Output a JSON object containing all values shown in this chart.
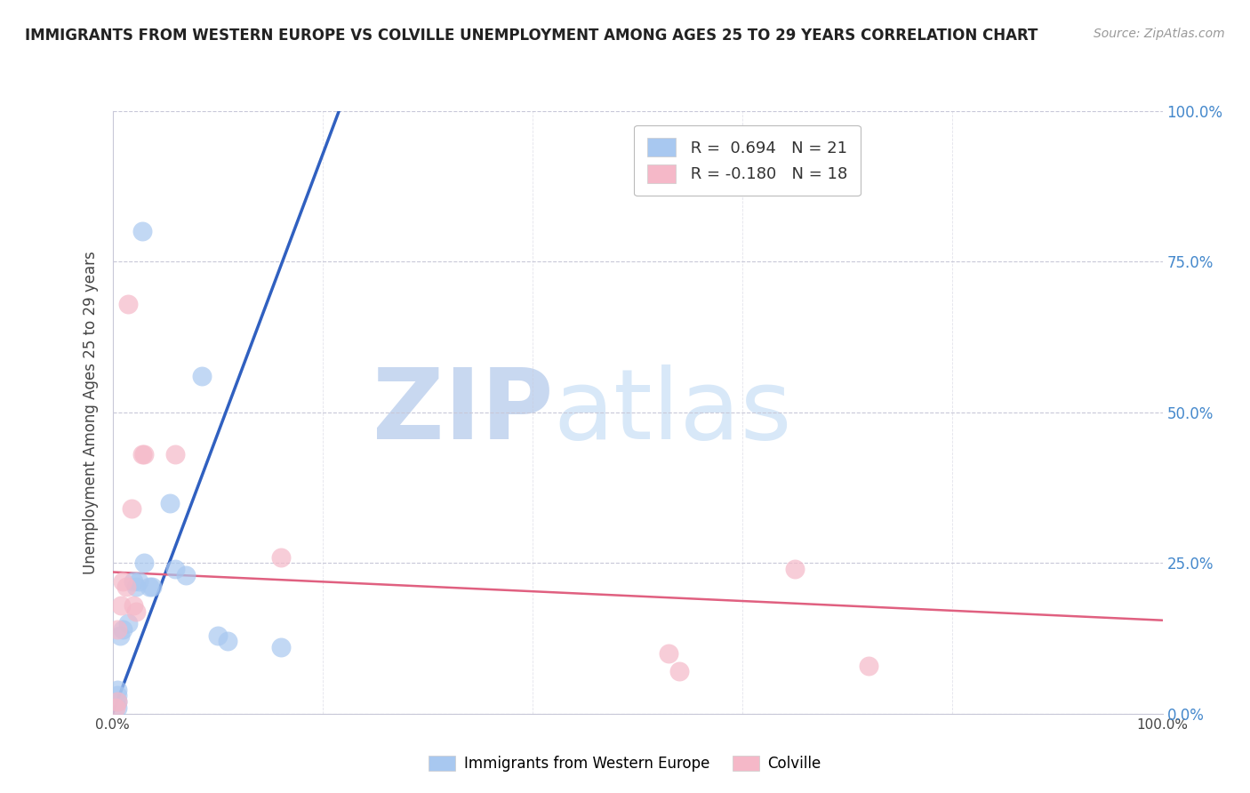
{
  "title": "IMMIGRANTS FROM WESTERN EUROPE VS COLVILLE UNEMPLOYMENT AMONG AGES 25 TO 29 YEARS CORRELATION CHART",
  "source": "Source: ZipAtlas.com",
  "ylabel": "Unemployment Among Ages 25 to 29 years",
  "xlim": [
    0,
    1.0
  ],
  "ylim": [
    0,
    1.0
  ],
  "ytick_vals": [
    0.0,
    0.25,
    0.5,
    0.75,
    1.0
  ],
  "xtick_vals": [
    0.0,
    1.0
  ],
  "xtick_labels": [
    "0.0%",
    "100.0%"
  ],
  "right_ytick_labels": [
    "100.0%",
    "75.0%",
    "50.0%",
    "25.0%",
    "0.0%"
  ],
  "watermark_zip": "ZIP",
  "watermark_atlas": "atlas",
  "blue_R": 0.694,
  "blue_N": 21,
  "pink_R": -0.18,
  "pink_N": 18,
  "blue_scatter_x": [
    0.005,
    0.005,
    0.005,
    0.005,
    0.007,
    0.01,
    0.015,
    0.02,
    0.022,
    0.025,
    0.028,
    0.03,
    0.035,
    0.038,
    0.055,
    0.06,
    0.07,
    0.085,
    0.1,
    0.11,
    0.16
  ],
  "blue_scatter_y": [
    0.01,
    0.02,
    0.03,
    0.04,
    0.13,
    0.14,
    0.15,
    0.22,
    0.21,
    0.22,
    0.8,
    0.25,
    0.21,
    0.21,
    0.35,
    0.24,
    0.23,
    0.56,
    0.13,
    0.12,
    0.11
  ],
  "pink_scatter_x": [
    0.003,
    0.005,
    0.005,
    0.008,
    0.01,
    0.013,
    0.015,
    0.018,
    0.02,
    0.022,
    0.028,
    0.03,
    0.06,
    0.16,
    0.53,
    0.54,
    0.65,
    0.72
  ],
  "pink_scatter_y": [
    0.01,
    0.02,
    0.14,
    0.18,
    0.22,
    0.21,
    0.68,
    0.34,
    0.18,
    0.17,
    0.43,
    0.43,
    0.43,
    0.26,
    0.1,
    0.07,
    0.24,
    0.08
  ],
  "blue_line_x": [
    0.0,
    0.22
  ],
  "blue_line_y": [
    0.0,
    1.02
  ],
  "pink_line_x": [
    0.0,
    1.0
  ],
  "pink_line_y": [
    0.235,
    0.155
  ],
  "blue_color": "#a8c8f0",
  "pink_color": "#f5b8c8",
  "blue_line_color": "#3060c0",
  "pink_line_color": "#e06080",
  "grid_color": "#c8c8d8",
  "bg_color": "#ffffff",
  "watermark_color_zip": "#c8d8f0",
  "watermark_color_atlas": "#d8e8f8",
  "title_color": "#222222",
  "axis_label_color": "#444444",
  "right_axis_color": "#4488cc",
  "legend_text_r_blue": "#3060c0",
  "legend_text_r_pink": "#e06080",
  "legend_text_n": "#333333"
}
